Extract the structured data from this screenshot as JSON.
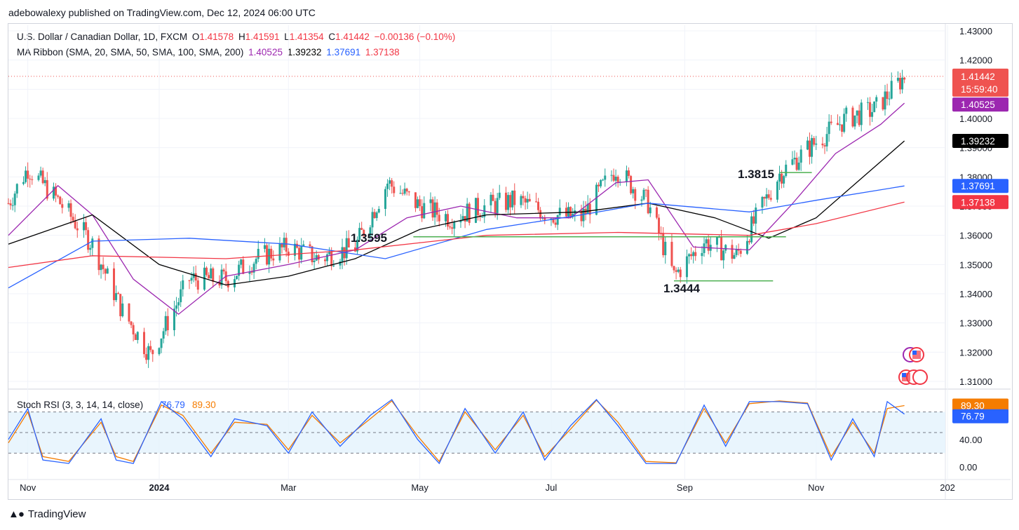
{
  "header": {
    "publisher_line": "adebowalexy published on TradingView.com, Dec 12, 2024 06:00 UTC"
  },
  "legend": {
    "symbol": "U.S. Dollar / Canadian Dollar, 1D, FXCM",
    "o_label": "O",
    "o_value": "1.41578",
    "h_label": "H",
    "h_value": "1.41591",
    "l_label": "L",
    "l_value": "1.41354",
    "c_label": "C",
    "c_value": "1.41442",
    "change": "−0.00136 (−0.10%)",
    "ma_label": "MA Ribbon (SMA, 20, SMA, 50, SMA, 100, SMA, 200)",
    "ma20": "1.40525",
    "ma50": "1.39232",
    "ma100": "1.37691",
    "ma200": "1.37138"
  },
  "colors": {
    "up": "#26a69a",
    "down": "#ef5350",
    "ma20": "#9c27b0",
    "ma50": "#000000",
    "ma100": "#2962ff",
    "ma200": "#f23645",
    "support": "#4caf50",
    "stoch_k": "#2962ff",
    "stoch_d": "#f57c00",
    "stoch_band": "#e3f2fd"
  },
  "price_axis": {
    "ticks": [
      "1.43000",
      "1.42000",
      "1.41000",
      "1.40000",
      "1.39000",
      "1.38000",
      "1.37000",
      "1.36000",
      "1.35000",
      "1.34000",
      "1.33000",
      "1.32000",
      "1.31000"
    ],
    "last_price": "1.41442",
    "countdown": "15:59:40",
    "ma20_badge": "1.40525",
    "ma50_badge": "1.39232",
    "ma100_badge": "1.37691",
    "ma200_badge": "1.37138"
  },
  "annotations": {
    "level_a": "1.3595",
    "level_b": "1.3815",
    "level_c": "1.3444"
  },
  "stoch": {
    "label": "Stoch RSI (3, 3, 14, 14, close)",
    "k_value": "76.79",
    "d_value": "89.30",
    "axis_ticks": [
      "40.00",
      "0.00"
    ],
    "k_badge": "76.79",
    "d_badge": "89.30"
  },
  "time_axis": {
    "labels": [
      "Nov",
      "2024",
      "Mar",
      "May",
      "Jul",
      "Sep",
      "Nov",
      "202"
    ]
  },
  "footer": {
    "brand": "TradingView"
  },
  "chart_data": {
    "type": "line",
    "title": "U.S. Dollar / Canadian Dollar, 1D, FXCM",
    "y_range": [
      1.305,
      1.432
    ],
    "x_range": [
      "2023-10-23",
      "2024-12-31"
    ],
    "series": [
      {
        "name": "U.S. Dollar / Canadian Dollar, 1D, FXCM",
        "kind": "close",
        "x": [
          "2023-10-23",
          "2023-11-01",
          "2023-11-15",
          "2023-12-01",
          "2023-12-15",
          "2023-12-28",
          "2024-01-15",
          "2024-02-01",
          "2024-02-15",
          "2024-03-01",
          "2024-03-15",
          "2024-04-01",
          "2024-04-16",
          "2024-05-01",
          "2024-05-15",
          "2024-06-01",
          "2024-06-15",
          "2024-07-01",
          "2024-07-15",
          "2024-07-31",
          "2024-08-15",
          "2024-08-27",
          "2024-09-10",
          "2024-09-25",
          "2024-10-15",
          "2024-11-01",
          "2024-11-15",
          "2024-11-28",
          "2024-12-12"
        ],
        "y": [
          1.371,
          1.383,
          1.372,
          1.357,
          1.334,
          1.319,
          1.345,
          1.345,
          1.352,
          1.356,
          1.352,
          1.356,
          1.378,
          1.37,
          1.366,
          1.37,
          1.372,
          1.367,
          1.366,
          1.383,
          1.371,
          1.346,
          1.358,
          1.353,
          1.381,
          1.392,
          1.4,
          1.403,
          1.41442
        ]
      },
      {
        "name": "MA Ribbon SMA 20",
        "x": [
          "2023-10-23",
          "2023-11-15",
          "2023-12-01",
          "2023-12-20",
          "2024-01-10",
          "2024-02-01",
          "2024-03-01",
          "2024-04-01",
          "2024-04-25",
          "2024-05-20",
          "2024-06-15",
          "2024-07-10",
          "2024-07-31",
          "2024-08-15",
          "2024-09-05",
          "2024-10-01",
          "2024-10-20",
          "2024-11-10",
          "2024-12-01",
          "2024-12-12"
        ],
        "y": [
          1.36,
          1.377,
          1.367,
          1.345,
          1.333,
          1.346,
          1.35,
          1.355,
          1.366,
          1.37,
          1.366,
          1.366,
          1.378,
          1.379,
          1.356,
          1.355,
          1.37,
          1.388,
          1.398,
          1.40525
        ]
      },
      {
        "name": "MA Ribbon SMA 50",
        "x": [
          "2023-10-23",
          "2023-12-01",
          "2024-01-01",
          "2024-02-01",
          "2024-03-01",
          "2024-04-01",
          "2024-05-01",
          "2024-06-01",
          "2024-07-15",
          "2024-08-15",
          "2024-09-15",
          "2024-10-10",
          "2024-11-01",
          "2024-12-12"
        ],
        "y": [
          1.357,
          1.367,
          1.35,
          1.343,
          1.346,
          1.352,
          1.362,
          1.367,
          1.368,
          1.371,
          1.366,
          1.359,
          1.366,
          1.39232
        ]
      },
      {
        "name": "MA Ribbon SMA 100",
        "x": [
          "2023-10-23",
          "2023-12-01",
          "2024-01-15",
          "2024-03-01",
          "2024-04-15",
          "2024-06-01",
          "2024-07-15",
          "2024-08-15",
          "2024-10-01",
          "2024-11-01",
          "2024-12-12"
        ],
        "y": [
          1.342,
          1.358,
          1.359,
          1.357,
          1.352,
          1.362,
          1.367,
          1.371,
          1.368,
          1.372,
          1.37691
        ]
      },
      {
        "name": "MA Ribbon SMA 200",
        "x": [
          "2023-10-23",
          "2023-12-01",
          "2024-02-01",
          "2024-04-01",
          "2024-06-01",
          "2024-08-01",
          "2024-10-01",
          "2024-11-01",
          "2024-12-12"
        ],
        "y": [
          1.349,
          1.353,
          1.352,
          1.355,
          1.36,
          1.361,
          1.36,
          1.364,
          1.37138
        ]
      }
    ],
    "horizontal_levels": [
      {
        "label": "1.3595",
        "y": 1.3595,
        "from": "2024-04-28",
        "to": "2024-10-18"
      },
      {
        "label": "1.3444",
        "y": 1.3444,
        "from": "2024-08-27",
        "to": "2024-10-12"
      },
      {
        "label": "1.3815",
        "y": 1.3815,
        "from": "2024-10-15",
        "to": "2024-10-30"
      }
    ],
    "stoch_rsi": {
      "label": "Stoch RSI (3, 3, 14, 14, close)",
      "y_range": [
        0,
        100
      ],
      "band": [
        20,
        80
      ],
      "x": [
        "2023-10-23",
        "2023-11-01",
        "2023-11-08",
        "2023-11-20",
        "2023-12-05",
        "2023-12-12",
        "2023-12-20",
        "2024-01-02",
        "2024-01-12",
        "2024-01-25",
        "2024-02-05",
        "2024-02-20",
        "2024-03-01",
        "2024-03-12",
        "2024-03-25",
        "2024-04-08",
        "2024-04-18",
        "2024-04-30",
        "2024-05-10",
        "2024-05-22",
        "2024-06-05",
        "2024-06-18",
        "2024-06-28",
        "2024-07-10",
        "2024-07-22",
        "2024-08-01",
        "2024-08-14",
        "2024-08-28",
        "2024-09-10",
        "2024-09-20",
        "2024-10-01",
        "2024-10-15",
        "2024-10-28",
        "2024-11-08",
        "2024-11-18",
        "2024-11-28",
        "2024-12-04",
        "2024-12-12"
      ],
      "k": [
        40,
        85,
        10,
        5,
        70,
        10,
        5,
        95,
        70,
        15,
        70,
        60,
        20,
        80,
        30,
        75,
        98,
        40,
        5,
        85,
        20,
        80,
        10,
        60,
        98,
        60,
        5,
        5,
        90,
        30,
        95,
        95,
        92,
        10,
        70,
        15,
        95,
        76.79
      ],
      "d": [
        35,
        80,
        15,
        8,
        65,
        15,
        8,
        90,
        75,
        20,
        65,
        62,
        25,
        75,
        35,
        70,
        96,
        45,
        8,
        80,
        25,
        75,
        15,
        55,
        97,
        65,
        8,
        6,
        85,
        35,
        92,
        96,
        93,
        15,
        65,
        20,
        85,
        89.3
      ]
    }
  }
}
